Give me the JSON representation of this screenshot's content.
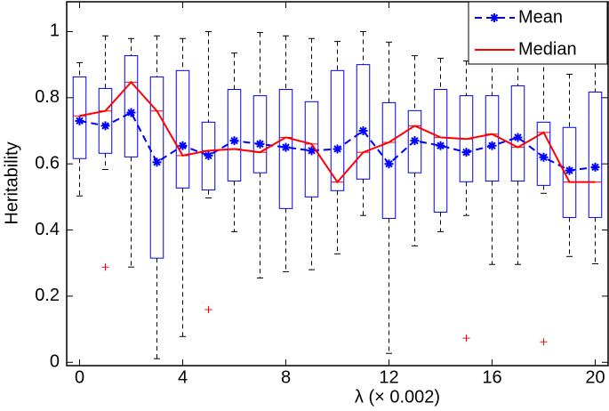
{
  "chart_data": {
    "type": "box",
    "xlabel": "λ (× 0.002)",
    "ylabel": "Heritability",
    "x": [
      0,
      1,
      2,
      3,
      4,
      5,
      6,
      7,
      8,
      9,
      10,
      11,
      12,
      13,
      14,
      15,
      16,
      17,
      18,
      19,
      20
    ],
    "whisker_low": [
      0.503,
      0.583,
      0.288,
      0.011,
      0.078,
      0.497,
      0.395,
      0.255,
      0.274,
      0.28,
      0.328,
      0.444,
      0.027,
      0.352,
      0.395,
      0.444,
      0.296,
      0.296,
      0.511,
      0.32,
      0.298
    ],
    "q1": [
      0.616,
      0.632,
      0.621,
      0.315,
      0.527,
      0.521,
      0.548,
      0.573,
      0.465,
      0.5,
      0.519,
      0.554,
      0.435,
      0.573,
      0.454,
      0.546,
      0.548,
      0.548,
      0.535,
      0.438,
      0.438
    ],
    "q3": [
      0.863,
      0.828,
      0.927,
      0.863,
      0.882,
      0.726,
      0.825,
      0.806,
      0.825,
      0.788,
      0.882,
      0.9,
      0.785,
      0.761,
      0.825,
      0.806,
      0.806,
      0.836,
      0.726,
      0.71,
      0.817
    ],
    "whisker_high": [
      0.906,
      0.987,
      0.979,
      0.987,
      0.979,
      1.0,
      0.935,
      0.997,
      0.987,
      0.979,
      0.97,
      1.0,
      0.968,
      0.927,
      0.919,
      0.911,
      0.914,
      0.987,
      0.941,
      0.871,
      0.973
    ],
    "box_color": "#0000ff",
    "whisker_color": "#000000",
    "outliers": {
      "x": [
        1,
        5,
        15,
        18
      ],
      "values": [
        0.288,
        0.159,
        0.073,
        0.062
      ],
      "color": "#ff0000"
    },
    "series": [
      {
        "name": "Mean",
        "color": "#0000ff",
        "linestyle": "dashed",
        "marker": "star",
        "values": [
          0.73,
          0.715,
          0.755,
          0.605,
          0.655,
          0.625,
          0.67,
          0.66,
          0.65,
          0.64,
          0.645,
          0.7,
          0.6,
          0.67,
          0.655,
          0.635,
          0.655,
          0.68,
          0.62,
          0.58,
          0.59
        ]
      },
      {
        "name": "Median",
        "color": "#ff0000",
        "linestyle": "solid",
        "marker": "none",
        "values": [
          0.745,
          0.76,
          0.847,
          0.76,
          0.625,
          0.64,
          0.645,
          0.635,
          0.68,
          0.66,
          0.545,
          0.635,
          0.665,
          0.715,
          0.68,
          0.675,
          0.69,
          0.65,
          0.695,
          0.545,
          0.545
        ]
      }
    ],
    "xlim": [
      -0.5,
      20.5
    ],
    "ylim": [
      -0.01,
      1.09
    ],
    "xticks": [
      0,
      4,
      8,
      12,
      16,
      20
    ],
    "yticks": [
      0,
      0.2,
      0.4,
      0.6,
      0.8,
      1
    ],
    "legend": "upper right"
  }
}
